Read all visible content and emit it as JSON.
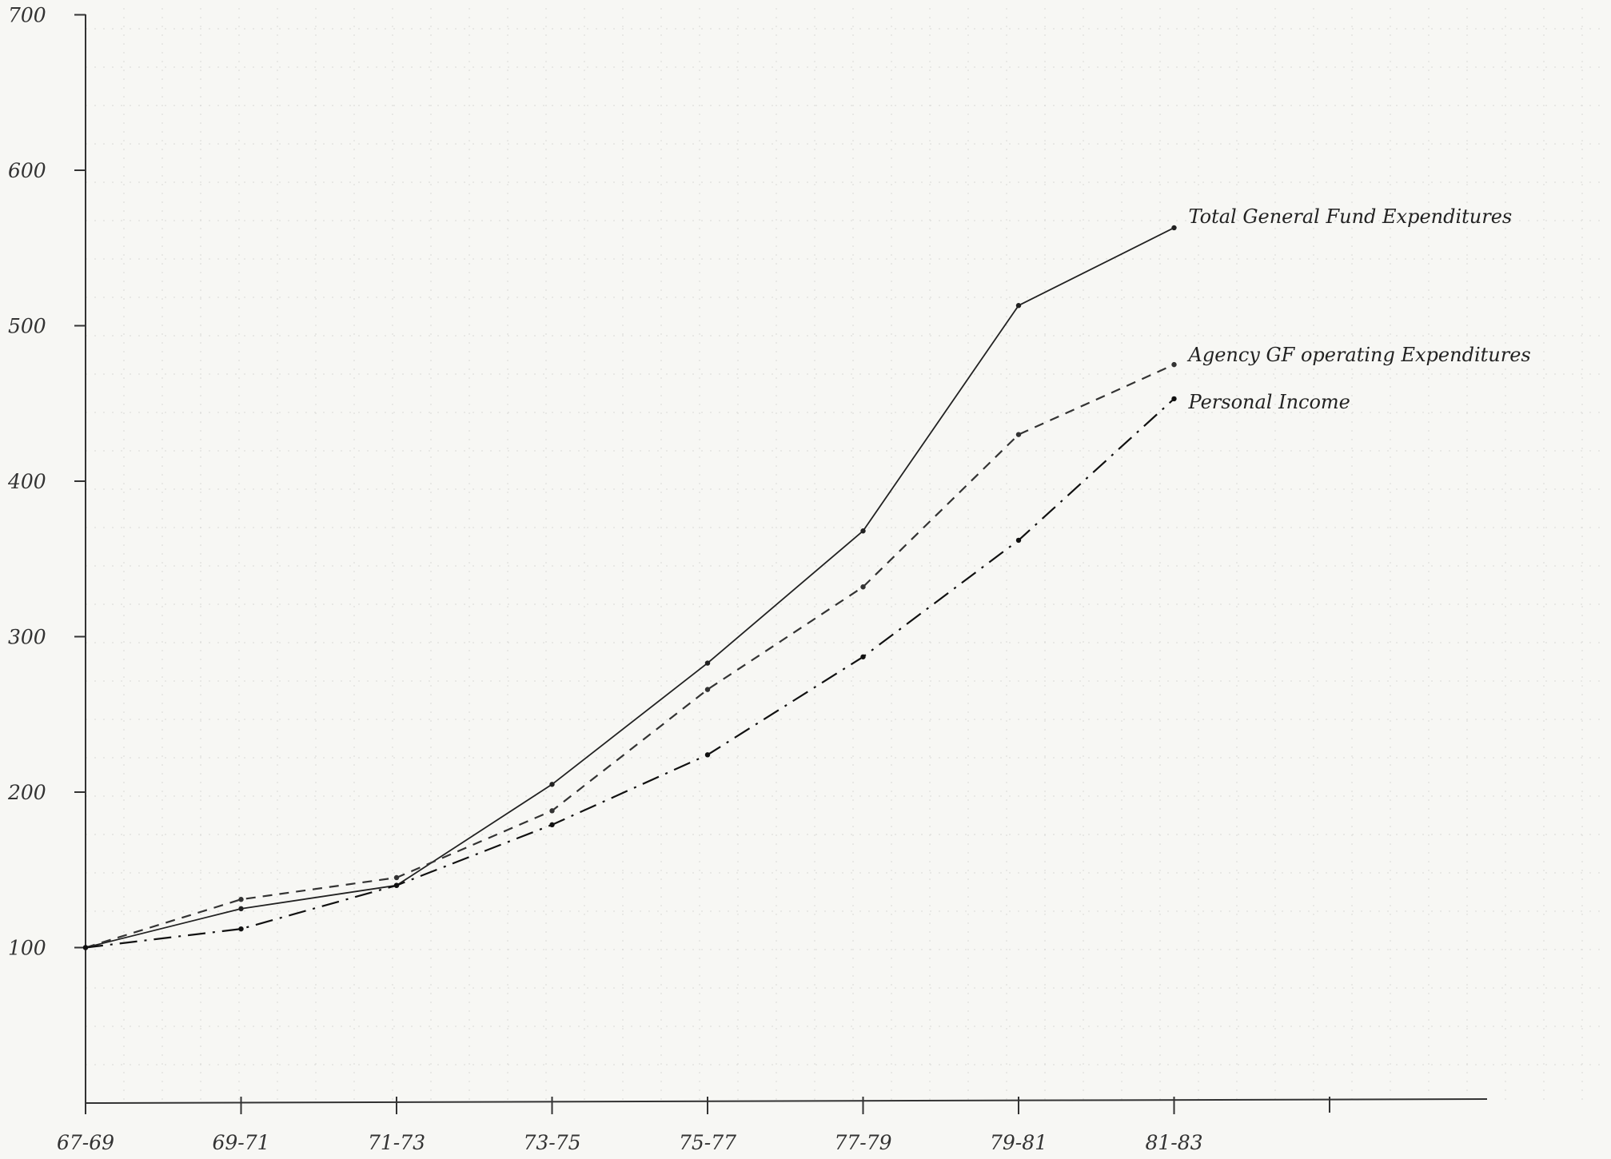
{
  "chart_data": {
    "type": "line",
    "title": "",
    "xlabel": "",
    "ylabel": "",
    "categories": [
      "67-69",
      "69-71",
      "71-73",
      "73-75",
      "75-77",
      "77-79",
      "79-81",
      "81-83"
    ],
    "ylim": [
      0,
      700
    ],
    "yticks": [
      100,
      200,
      300,
      400,
      500,
      600,
      700
    ],
    "grid": true,
    "series": [
      {
        "name": "Total General Fund Expenditures",
        "values": [
          100,
          125,
          140,
          205,
          283,
          368,
          513,
          563
        ],
        "style": "solid",
        "color": "#222222"
      },
      {
        "name": "Agency GF operating Expenditures",
        "values": [
          100,
          131,
          145,
          188,
          266,
          332,
          430,
          475
        ],
        "style": "dashed",
        "color": "#333333"
      },
      {
        "name": "Personal Income",
        "values": [
          100,
          112,
          140,
          179,
          224,
          287,
          362,
          453
        ],
        "style": "dash-dot",
        "color": "#111111"
      }
    ]
  }
}
